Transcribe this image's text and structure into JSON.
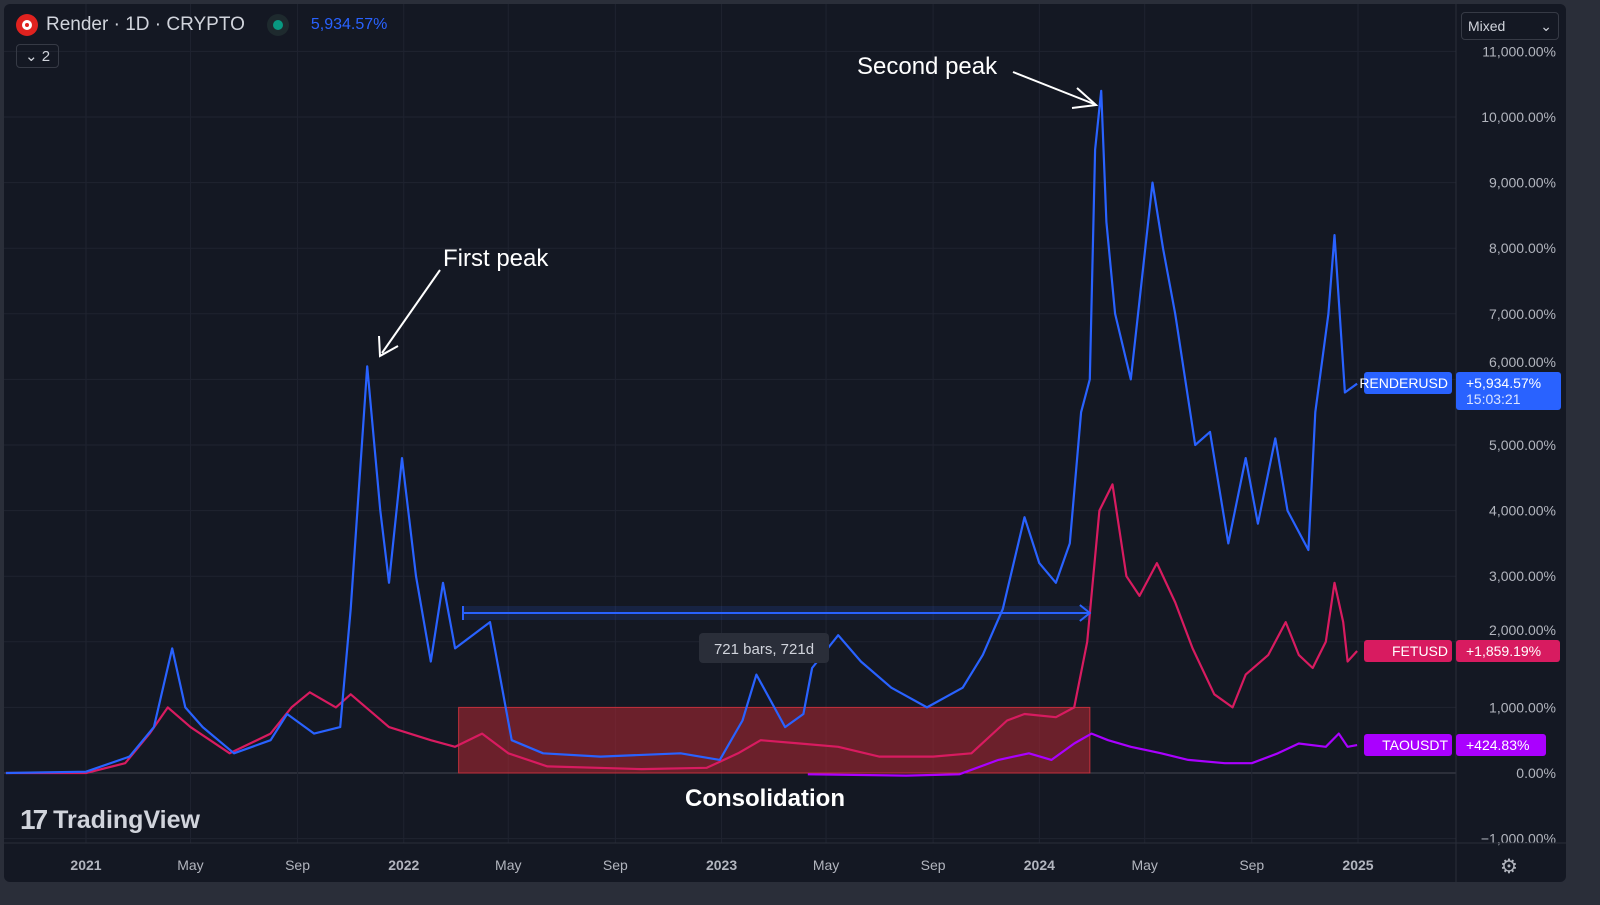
{
  "header": {
    "symbol_title": "Render · 1D · CRYPTO",
    "change": "5,934.57%",
    "collapse_count": "2",
    "scale_mode": "Mixed"
  },
  "branding": {
    "logo_text": "TradingView"
  },
  "icons": {
    "symbol": "render-logo-icon",
    "status": "market-open-dot-icon",
    "collapse": "chevron-down-icon",
    "settings": "gear-icon"
  },
  "chart_data": {
    "type": "line",
    "title": "",
    "yscale": "percent",
    "ylim": [
      -1000,
      11000
    ],
    "grid": true,
    "y_ticks": [
      "11,000.00%",
      "10,000.00%",
      "9,000.00%",
      "8,000.00%",
      "7,000.00%",
      "6,000.00%",
      "5,000.00%",
      "4,000.00%",
      "3,000.00%",
      "2,000.00%",
      "1,000.00%",
      "0.00%",
      "−1,000.00%"
    ],
    "y_tick_values": [
      11000,
      10000,
      9000,
      8000,
      7000,
      6000,
      5000,
      4000,
      3000,
      2000,
      1000,
      0,
      -1000
    ],
    "x_ticks": [
      {
        "label": "2021",
        "date": "2021-01-01",
        "bold": true
      },
      {
        "label": "May",
        "date": "2021-05-01"
      },
      {
        "label": "Sep",
        "date": "2021-09-01"
      },
      {
        "label": "2022",
        "date": "2022-01-01",
        "bold": true
      },
      {
        "label": "May",
        "date": "2022-05-01"
      },
      {
        "label": "Sep",
        "date": "2022-09-01"
      },
      {
        "label": "2023",
        "date": "2023-01-01",
        "bold": true
      },
      {
        "label": "May",
        "date": "2023-05-01"
      },
      {
        "label": "Sep",
        "date": "2023-09-01"
      },
      {
        "label": "2024",
        "date": "2024-01-01",
        "bold": true
      },
      {
        "label": "May",
        "date": "2024-05-01"
      },
      {
        "label": "Sep",
        "date": "2024-09-01"
      },
      {
        "label": "2025",
        "date": "2025-01-01",
        "bold": true
      }
    ],
    "series": [
      {
        "name": "RENDERUSD",
        "color": "#2962ff",
        "last_label": "+5,934.57%",
        "countdown": "15:03:21",
        "points": [
          [
            "2020-10-01",
            0
          ],
          [
            "2021-01-01",
            20
          ],
          [
            "2021-02-20",
            250
          ],
          [
            "2021-03-20",
            700
          ],
          [
            "2021-04-10",
            1900
          ],
          [
            "2021-04-25",
            1000
          ],
          [
            "2021-05-15",
            700
          ],
          [
            "2021-06-20",
            300
          ],
          [
            "2021-08-01",
            500
          ],
          [
            "2021-08-20",
            900
          ],
          [
            "2021-09-20",
            600
          ],
          [
            "2021-10-20",
            700
          ],
          [
            "2021-11-01",
            2500
          ],
          [
            "2021-11-20",
            6200
          ],
          [
            "2021-12-05",
            4000
          ],
          [
            "2021-12-15",
            2900
          ],
          [
            "2021-12-30",
            4800
          ],
          [
            "2022-01-15",
            3000
          ],
          [
            "2022-02-01",
            1700
          ],
          [
            "2022-02-15",
            2900
          ],
          [
            "2022-03-01",
            1900
          ],
          [
            "2022-04-10",
            2300
          ],
          [
            "2022-05-05",
            500
          ],
          [
            "2022-06-10",
            300
          ],
          [
            "2022-08-15",
            250
          ],
          [
            "2022-11-15",
            300
          ],
          [
            "2022-12-30",
            200
          ],
          [
            "2023-01-25",
            800
          ],
          [
            "2023-02-10",
            1500
          ],
          [
            "2023-03-15",
            700
          ],
          [
            "2023-04-05",
            900
          ],
          [
            "2023-04-15",
            1600
          ],
          [
            "2023-05-15",
            2100
          ],
          [
            "2023-06-10",
            1700
          ],
          [
            "2023-07-15",
            1300
          ],
          [
            "2023-08-25",
            1000
          ],
          [
            "2023-10-05",
            1300
          ],
          [
            "2023-10-28",
            1800
          ],
          [
            "2023-11-20",
            2500
          ],
          [
            "2023-12-15",
            3900
          ],
          [
            "2024-01-01",
            3200
          ],
          [
            "2024-01-20",
            2900
          ],
          [
            "2024-02-05",
            3500
          ],
          [
            "2024-02-18",
            5500
          ],
          [
            "2024-02-28",
            6000
          ],
          [
            "2024-03-05",
            9500
          ],
          [
            "2024-03-12",
            10400
          ],
          [
            "2024-03-18",
            8400
          ],
          [
            "2024-03-28",
            7000
          ],
          [
            "2024-04-15",
            6000
          ],
          [
            "2024-04-25",
            7200
          ],
          [
            "2024-05-10",
            9000
          ],
          [
            "2024-05-22",
            8000
          ],
          [
            "2024-06-05",
            7000
          ],
          [
            "2024-06-28",
            5000
          ],
          [
            "2024-07-15",
            5200
          ],
          [
            "2024-08-05",
            3500
          ],
          [
            "2024-08-25",
            4800
          ],
          [
            "2024-09-08",
            3800
          ],
          [
            "2024-09-28",
            5100
          ],
          [
            "2024-10-12",
            4000
          ],
          [
            "2024-11-05",
            3400
          ],
          [
            "2024-11-13",
            5500
          ],
          [
            "2024-11-28",
            7000
          ],
          [
            "2024-12-05",
            8200
          ],
          [
            "2024-12-17",
            5800
          ],
          [
            "2024-12-31",
            5934.57
          ]
        ]
      },
      {
        "name": "FETUSD",
        "color": "#d81b60",
        "last_label": "+1,859.19%",
        "points": [
          [
            "2020-10-01",
            0
          ],
          [
            "2021-01-01",
            0
          ],
          [
            "2021-02-15",
            150
          ],
          [
            "2021-03-15",
            600
          ],
          [
            "2021-04-05",
            1000
          ],
          [
            "2021-05-01",
            700
          ],
          [
            "2021-06-15",
            300
          ],
          [
            "2021-08-01",
            600
          ],
          [
            "2021-08-25",
            1000
          ],
          [
            "2021-09-15",
            1230
          ],
          [
            "2021-10-15",
            1000
          ],
          [
            "2021-11-01",
            1200
          ],
          [
            "2021-12-15",
            700
          ],
          [
            "2022-02-01",
            500
          ],
          [
            "2022-03-01",
            400
          ],
          [
            "2022-04-01",
            600
          ],
          [
            "2022-05-01",
            300
          ],
          [
            "2022-06-15",
            100
          ],
          [
            "2022-10-01",
            60
          ],
          [
            "2022-12-15",
            80
          ],
          [
            "2023-01-20",
            300
          ],
          [
            "2023-02-15",
            500
          ],
          [
            "2023-04-01",
            450
          ],
          [
            "2023-05-15",
            400
          ],
          [
            "2023-07-01",
            250
          ],
          [
            "2023-09-01",
            250
          ],
          [
            "2023-10-15",
            300
          ],
          [
            "2023-11-25",
            800
          ],
          [
            "2023-12-15",
            900
          ],
          [
            "2024-01-20",
            850
          ],
          [
            "2024-02-10",
            1000
          ],
          [
            "2024-02-25",
            2000
          ],
          [
            "2024-03-10",
            4000
          ],
          [
            "2024-03-25",
            4400
          ],
          [
            "2024-04-10",
            3000
          ],
          [
            "2024-04-25",
            2700
          ],
          [
            "2024-05-15",
            3200
          ],
          [
            "2024-06-05",
            2600
          ],
          [
            "2024-06-25",
            1900
          ],
          [
            "2024-07-20",
            1200
          ],
          [
            "2024-08-10",
            1000
          ],
          [
            "2024-08-25",
            1500
          ],
          [
            "2024-09-20",
            1800
          ],
          [
            "2024-10-10",
            2300
          ],
          [
            "2024-10-25",
            1800
          ],
          [
            "2024-11-10",
            1600
          ],
          [
            "2024-11-25",
            2000
          ],
          [
            "2024-12-05",
            2900
          ],
          [
            "2024-12-15",
            2300
          ],
          [
            "2024-12-20",
            1700
          ],
          [
            "2024-12-31",
            1859.19
          ]
        ]
      },
      {
        "name": "TAOUSDT",
        "color": "#aa00ff",
        "last_label": "+424.83%",
        "points": [
          [
            "2023-04-10",
            -20
          ],
          [
            "2023-08-01",
            -40
          ],
          [
            "2023-10-01",
            -20
          ],
          [
            "2023-11-15",
            200
          ],
          [
            "2023-12-20",
            300
          ],
          [
            "2024-01-15",
            200
          ],
          [
            "2024-02-10",
            450
          ],
          [
            "2024-03-01",
            600
          ],
          [
            "2024-03-20",
            500
          ],
          [
            "2024-04-15",
            400
          ],
          [
            "2024-05-20",
            300
          ],
          [
            "2024-06-20",
            200
          ],
          [
            "2024-08-01",
            150
          ],
          [
            "2024-09-01",
            150
          ],
          [
            "2024-10-01",
            300
          ],
          [
            "2024-10-25",
            450
          ],
          [
            "2024-11-25",
            400
          ],
          [
            "2024-12-10",
            600
          ],
          [
            "2024-12-20",
            400
          ],
          [
            "2024-12-31",
            424.83
          ]
        ]
      }
    ],
    "annotations": [
      {
        "text": "First peak",
        "points_to": [
          "2021-11-20",
          6200
        ]
      },
      {
        "text": "Second peak",
        "points_to": [
          "2024-03-12",
          10400
        ]
      },
      {
        "text": "Consolidation",
        "range": [
          "2022-03-05",
          "2024-02-28"
        ],
        "y_range": [
          0,
          1000
        ]
      },
      {
        "text": "721 bars, 721d",
        "measure": [
          "2022-03-10",
          "2024-02-28"
        ],
        "y": 2500
      }
    ]
  }
}
